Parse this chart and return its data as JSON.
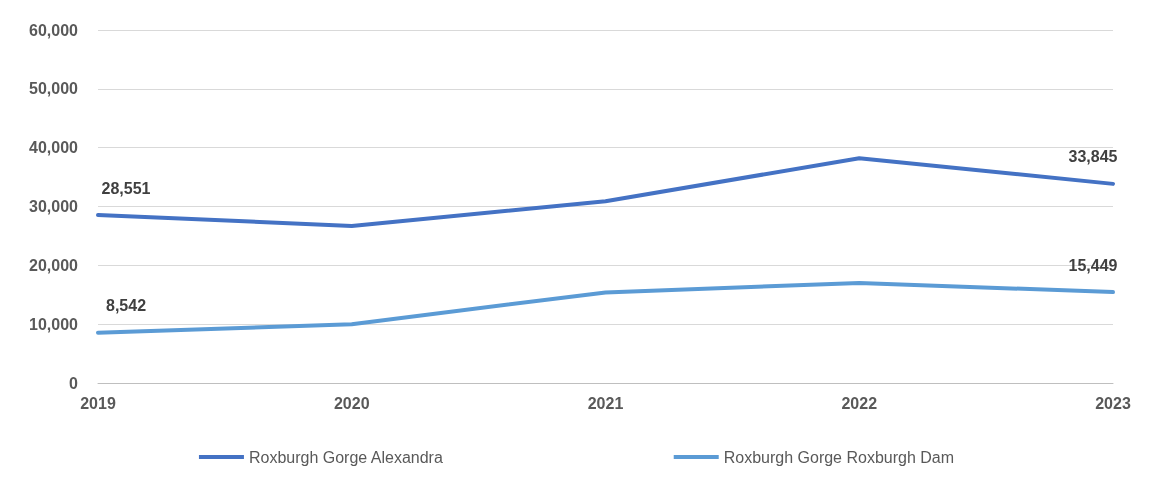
{
  "chart_data": {
    "type": "line",
    "categories": [
      "2019",
      "2020",
      "2021",
      "2022",
      "2023"
    ],
    "series": [
      {
        "name": "Roxburgh Gorge Alexandra",
        "color": "#4472c4",
        "values": [
          28551,
          26700,
          30900,
          38200,
          33845
        ],
        "value_labels": [
          "28,551",
          null,
          null,
          null,
          "33,845"
        ]
      },
      {
        "name": "Roxburgh Gorge Roxburgh Dam",
        "color": "#5b9bd5",
        "values": [
          8542,
          10000,
          15400,
          17000,
          15449
        ],
        "value_labels": [
          "8,542",
          null,
          null,
          null,
          "15,449"
        ]
      }
    ],
    "ylim": [
      0,
      60000
    ],
    "yticks": [
      {
        "value": 0,
        "label": "0"
      },
      {
        "value": 10000,
        "label": "10,000"
      },
      {
        "value": 20000,
        "label": "20,000"
      },
      {
        "value": 30000,
        "label": "30,000"
      },
      {
        "value": 40000,
        "label": "40,000"
      },
      {
        "value": 50000,
        "label": "50,000"
      },
      {
        "value": 60000,
        "label": "60,000"
      }
    ],
    "grid": "y",
    "legend": "bottom",
    "marker": "none",
    "line_style": "solid"
  }
}
